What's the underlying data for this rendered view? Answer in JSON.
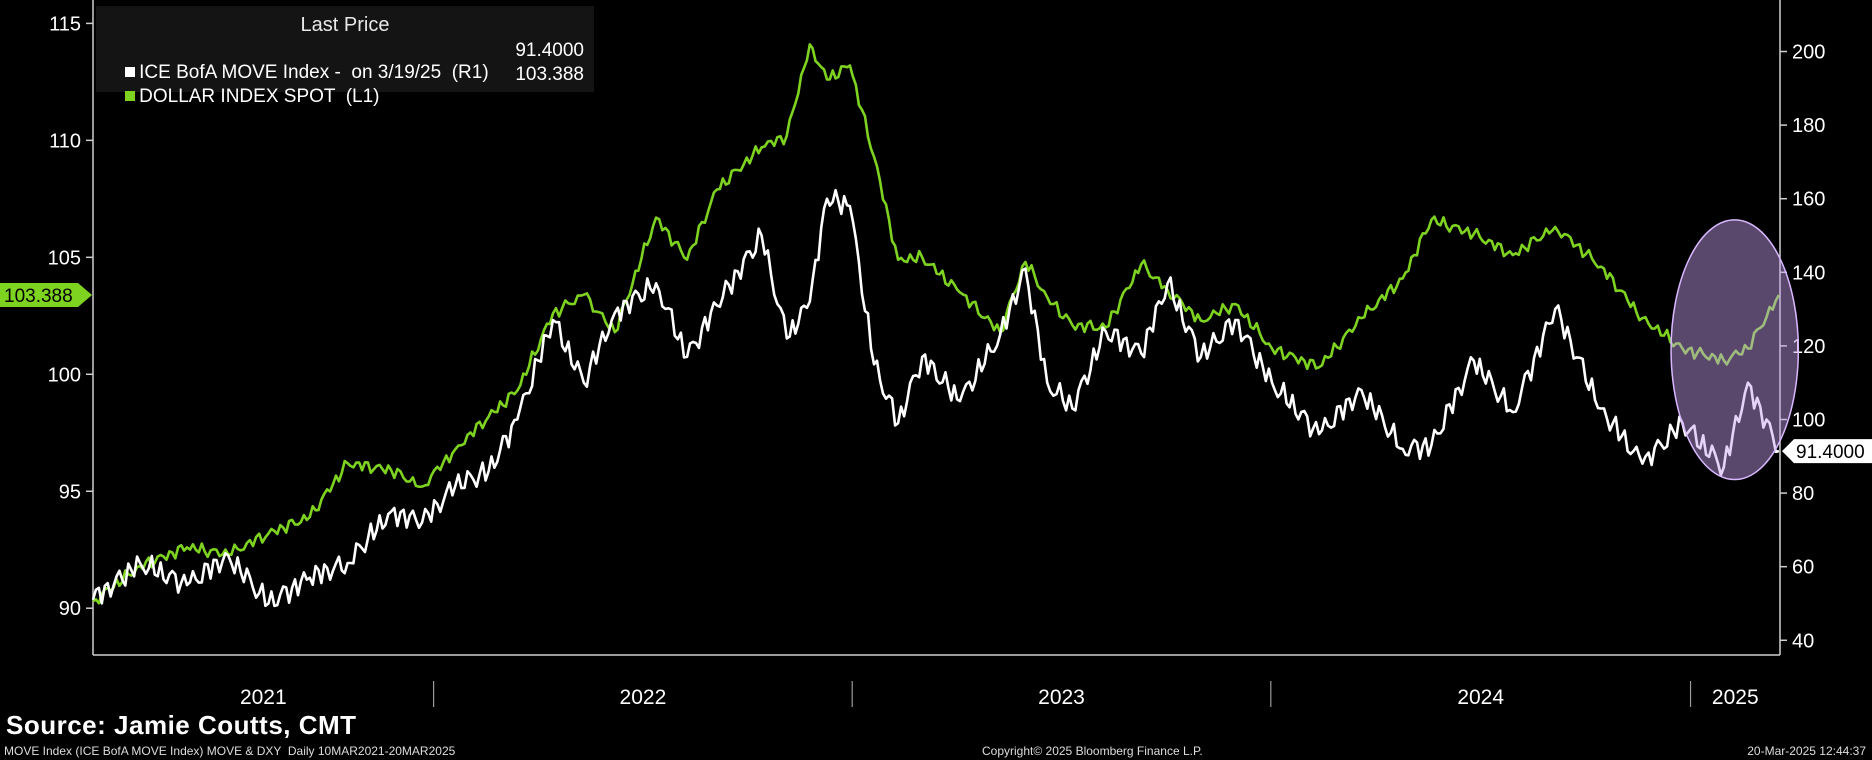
{
  "legend": {
    "title": "Last Price",
    "move_label": "ICE BofA MOVE Index -  on 3/19/25  (R1)",
    "move_value": "91.4000",
    "dxy_label": "DOLLAR INDEX SPOT  (L1)",
    "dxy_value": "103.388"
  },
  "source": "Source: Jamie Coutts, CMT",
  "footer": {
    "left": "MOVE Index (ICE BofA MOVE Index) MOVE & DXY  Daily 10MAR2021-20MAR2025",
    "center": "Copyright© 2025 Bloomberg Finance L.P.",
    "right": "20-Mar-2025 12:44:37"
  },
  "colors": {
    "dxy": "#7ed321",
    "move": "#ffffff",
    "highlight": "#c8a0f0",
    "background": "#000000"
  },
  "chart_data": {
    "type": "line",
    "x_range": [
      "2021-03-10",
      "2025-03-20"
    ],
    "x_ticks": [
      "2021",
      "2022",
      "2023",
      "2024",
      "2025"
    ],
    "left_axis": {
      "ylim": [
        88,
        116
      ],
      "ticks": [
        90,
        95,
        100,
        105,
        110,
        115
      ],
      "last_value_label": "103.388"
    },
    "right_axis": {
      "ylim": [
        36,
        214
      ],
      "ticks": [
        40,
        60,
        80,
        100,
        120,
        140,
        160,
        180,
        200
      ],
      "last_value_label": "91.4000"
    },
    "series": [
      {
        "name": "DOLLAR INDEX SPOT (L1)",
        "axis": "left",
        "points": [
          [
            "2021-03-10",
            90.3
          ],
          [
            "2021-04-20",
            91.8
          ],
          [
            "2021-05-31",
            92.6
          ],
          [
            "2021-07-06",
            92.3
          ],
          [
            "2021-08-10",
            93.2
          ],
          [
            "2021-09-15",
            93.9
          ],
          [
            "2021-10-18",
            96.2
          ],
          [
            "2021-11-25",
            95.9
          ],
          [
            "2021-12-22",
            95.2
          ],
          [
            "2022-01-20",
            96.8
          ],
          [
            "2022-02-18",
            98.2
          ],
          [
            "2022-03-15",
            99.3
          ],
          [
            "2022-04-15",
            102.6
          ],
          [
            "2022-05-12",
            103.4
          ],
          [
            "2022-06-08",
            101.8
          ],
          [
            "2022-07-14",
            106.7
          ],
          [
            "2022-08-10",
            104.9
          ],
          [
            "2022-09-05",
            107.9
          ],
          [
            "2022-10-14",
            109.7
          ],
          [
            "2022-11-05",
            110.2
          ],
          [
            "2022-11-25",
            114.1
          ],
          [
            "2022-12-10",
            112.6
          ],
          [
            "2022-12-30",
            113.2
          ],
          [
            "2023-01-20",
            109.3
          ],
          [
            "2023-02-10",
            104.9
          ],
          [
            "2023-03-03",
            105.0
          ],
          [
            "2023-04-05",
            103.5
          ],
          [
            "2023-05-10",
            101.8
          ],
          [
            "2023-06-01",
            104.8
          ],
          [
            "2023-06-20",
            103.3
          ],
          [
            "2023-07-12",
            102.1
          ],
          [
            "2023-08-10",
            102.0
          ],
          [
            "2023-09-10",
            104.7
          ],
          [
            "2023-10-03",
            103.6
          ],
          [
            "2023-11-01",
            102.3
          ],
          [
            "2023-12-01",
            103.0
          ],
          [
            "2024-01-02",
            101.1
          ],
          [
            "2024-02-12",
            100.3
          ],
          [
            "2024-03-20",
            102.4
          ],
          [
            "2024-04-25",
            104.1
          ],
          [
            "2024-05-20",
            106.6
          ],
          [
            "2024-06-26",
            106.0
          ],
          [
            "2024-07-30",
            105.1
          ],
          [
            "2024-09-05",
            106.3
          ],
          [
            "2024-10-15",
            104.6
          ],
          [
            "2024-11-20",
            102.4
          ],
          [
            "2024-12-25",
            101.1
          ],
          [
            "2025-01-30",
            100.6
          ],
          [
            "2025-02-20",
            101.1
          ],
          [
            "2025-03-19",
            103.388
          ]
        ]
      },
      {
        "name": "ICE BofA MOVE Index (R1)",
        "axis": "right",
        "points": [
          [
            "2021-03-10",
            51
          ],
          [
            "2021-04-20",
            61
          ],
          [
            "2021-05-31",
            55
          ],
          [
            "2021-07-06",
            63
          ],
          [
            "2021-08-10",
            50
          ],
          [
            "2021-09-15",
            57
          ],
          [
            "2021-10-18",
            61
          ],
          [
            "2021-11-25",
            75
          ],
          [
            "2021-12-22",
            72
          ],
          [
            "2022-01-20",
            82
          ],
          [
            "2022-02-18",
            86
          ],
          [
            "2022-03-15",
            100
          ],
          [
            "2022-04-15",
            127
          ],
          [
            "2022-05-12",
            110
          ],
          [
            "2022-06-08",
            129
          ],
          [
            "2022-07-14",
            137
          ],
          [
            "2022-08-10",
            117
          ],
          [
            "2022-09-05",
            131
          ],
          [
            "2022-10-14",
            150
          ],
          [
            "2022-11-05",
            122
          ],
          [
            "2022-11-25",
            132
          ],
          [
            "2022-12-10",
            160
          ],
          [
            "2022-12-30",
            158
          ],
          [
            "2023-01-20",
            115
          ],
          [
            "2023-02-10",
            99
          ],
          [
            "2023-03-03",
            117
          ],
          [
            "2023-04-05",
            105
          ],
          [
            "2023-05-10",
            123
          ],
          [
            "2023-06-01",
            141
          ],
          [
            "2023-06-20",
            110
          ],
          [
            "2023-07-12",
            103
          ],
          [
            "2023-08-10",
            124
          ],
          [
            "2023-09-10",
            118
          ],
          [
            "2023-10-03",
            137
          ],
          [
            "2023-11-01",
            117
          ],
          [
            "2023-12-01",
            127
          ],
          [
            "2024-01-02",
            110
          ],
          [
            "2024-02-12",
            96
          ],
          [
            "2024-03-20",
            108
          ],
          [
            "2024-04-25",
            92
          ],
          [
            "2024-05-20",
            93
          ],
          [
            "2024-06-26",
            116
          ],
          [
            "2024-07-30",
            102
          ],
          [
            "2024-09-05",
            130
          ],
          [
            "2024-10-15",
            103
          ],
          [
            "2024-11-20",
            88
          ],
          [
            "2024-12-25",
            99
          ],
          [
            "2025-01-30",
            87
          ],
          [
            "2025-02-20",
            110
          ],
          [
            "2025-03-19",
            91.4
          ]
        ]
      }
    ],
    "annotation": {
      "shape": "ellipse",
      "x_range": [
        "2024-12-15",
        "2025-04-05"
      ],
      "y_left_range": [
        95.5,
        106.6
      ]
    }
  }
}
